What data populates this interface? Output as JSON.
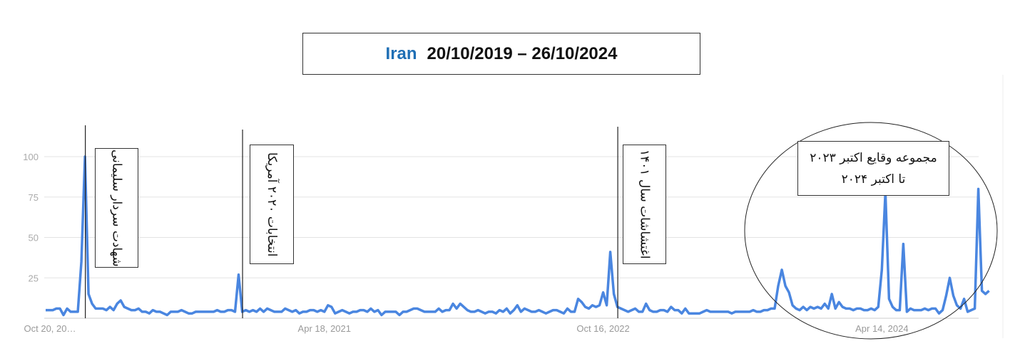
{
  "title": {
    "country": "Iran",
    "range": "20/10/2019 – 26/10/2024",
    "country_color": "#1f6fb5"
  },
  "chart_data": {
    "type": "line",
    "title": "Iran  20/10/2019 – 26/10/2024",
    "xlabel": "",
    "ylabel": "",
    "ylim": [
      0,
      100
    ],
    "yticks": [
      "25",
      "50",
      "75",
      "100"
    ],
    "xtick_labels": [
      "Oct 20, 20…",
      "Apr 18, 2021",
      "Oct 16, 2022",
      "Apr 14, 2024"
    ],
    "x_start": "2019-10-20",
    "x_interval": "week",
    "grid": true,
    "line_color": "#4a86e0",
    "values": [
      5,
      5,
      5,
      6,
      6,
      2,
      6,
      4,
      4,
      4,
      35,
      100,
      15,
      9,
      6,
      6,
      6,
      5,
      7,
      5,
      9,
      11,
      7,
      6,
      5,
      5,
      6,
      4,
      4,
      3,
      5,
      4,
      4,
      3,
      2,
      4,
      4,
      4,
      5,
      4,
      3,
      3,
      4,
      4,
      4,
      4,
      4,
      4,
      5,
      4,
      4,
      5,
      5,
      4,
      27,
      4,
      5,
      4,
      5,
      4,
      6,
      4,
      6,
      5,
      4,
      4,
      4,
      6,
      5,
      4,
      5,
      3,
      4,
      4,
      5,
      5,
      4,
      5,
      4,
      8,
      7,
      3,
      4,
      5,
      4,
      3,
      4,
      4,
      5,
      5,
      4,
      6,
      4,
      5,
      2,
      4,
      4,
      4,
      4,
      2,
      4,
      4,
      5,
      6,
      6,
      5,
      4,
      4,
      4,
      4,
      6,
      4,
      5,
      5,
      9,
      6,
      9,
      7,
      5,
      4,
      4,
      5,
      4,
      3,
      4,
      4,
      3,
      5,
      4,
      6,
      3,
      5,
      8,
      4,
      6,
      5,
      4,
      4,
      5,
      4,
      3,
      4,
      5,
      5,
      4,
      3,
      6,
      4,
      4,
      12,
      10,
      7,
      6,
      8,
      7,
      8,
      16,
      8,
      41,
      15,
      7,
      6,
      5,
      4,
      5,
      6,
      4,
      4,
      9,
      5,
      4,
      4,
      5,
      5,
      4,
      7,
      5,
      5,
      3,
      6,
      3,
      3,
      3,
      3,
      4,
      5,
      4,
      4,
      4,
      4,
      4,
      4,
      3,
      4,
      4,
      4,
      4,
      4,
      5,
      4,
      4,
      5,
      5,
      6,
      6,
      20,
      30,
      20,
      16,
      8,
      6,
      5,
      7,
      5,
      7,
      6,
      7,
      6,
      9,
      6,
      15,
      6,
      10,
      7,
      6,
      6,
      5,
      6,
      6,
      5,
      5,
      6,
      5,
      7,
      30,
      78,
      12,
      7,
      5,
      5,
      46,
      4,
      6,
      5,
      5,
      5,
      6,
      5,
      6,
      6,
      3,
      5,
      14,
      25,
      14,
      8,
      6,
      12,
      4,
      5,
      6,
      80,
      17,
      15,
      17
    ],
    "annotations": [
      {
        "text": "شهادت سردار سلیمانی",
        "week": 11
      },
      {
        "text": "انتخابات ۲۰۲۰ آمریکا",
        "week": 55
      },
      {
        "text": "اغتشاشات سال ۱۴۰۱",
        "week": 160
      },
      {
        "text_line1": "مجموعه وقایع اکتبر ۲۰۲۳",
        "text_line2": "تا اکتبر ۲۰۲۴"
      }
    ]
  }
}
